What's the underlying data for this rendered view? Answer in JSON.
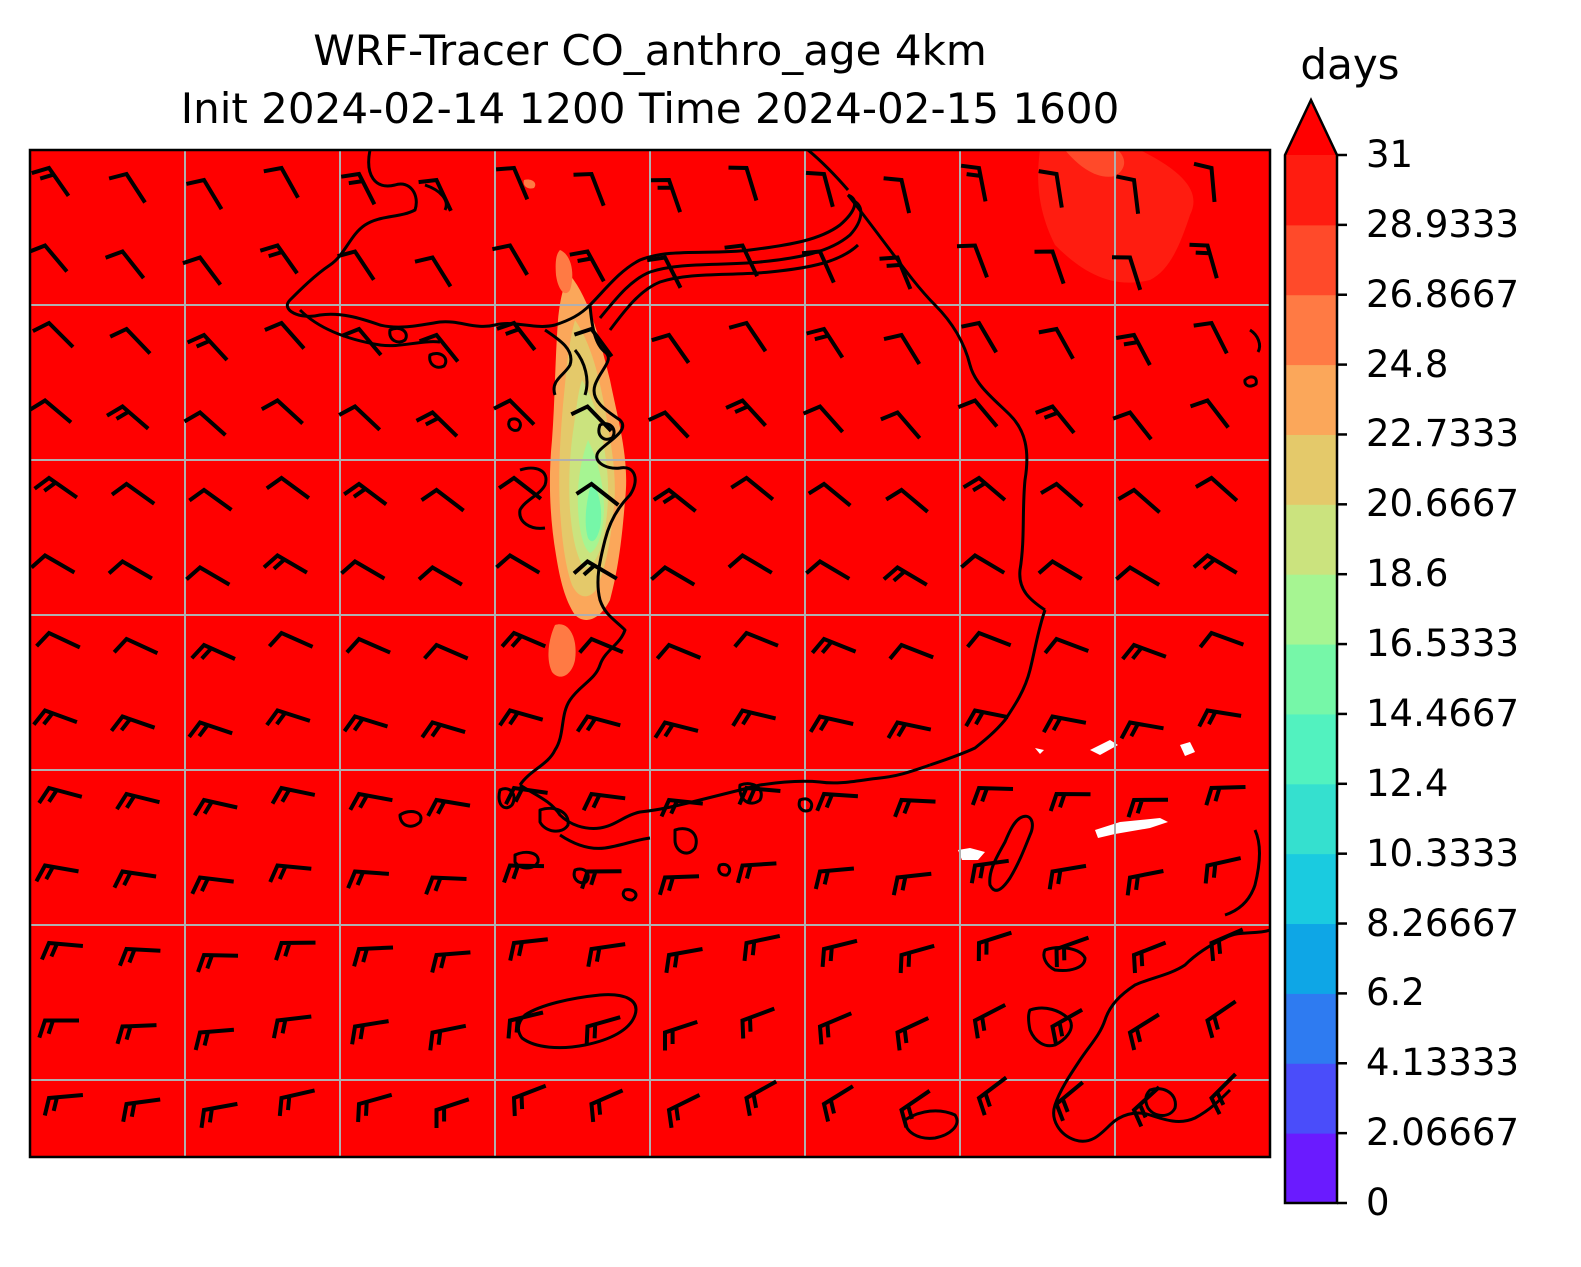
{
  "title": {
    "line1": "WRF-Tracer CO_anthro_age 4km",
    "line2": "Init 2024-02-14 1200 Time 2024-02-15 1600"
  },
  "colorbar": {
    "label": "days",
    "ticks": [
      "0",
      "2.06667",
      "4.13333",
      "6.2",
      "8.26667",
      "10.3333",
      "12.4",
      "14.4667",
      "16.5333",
      "18.6",
      "20.6667",
      "22.7333",
      "24.8",
      "26.8667",
      "28.9333",
      "31"
    ],
    "levels": [
      0,
      2.06667,
      4.13333,
      6.2,
      8.26667,
      10.3333,
      12.4,
      14.4667,
      16.5333,
      18.6,
      20.6667,
      22.7333,
      24.8,
      26.8667,
      28.9333,
      31
    ],
    "colors": [
      "#6a1bff",
      "#4a4dfa",
      "#2e7bf1",
      "#0ea6e6",
      "#1acbe0",
      "#35e0cf",
      "#52f2bf",
      "#76f7a8",
      "#a6f592",
      "#cbe37e",
      "#e4c96a",
      "#fba75a",
      "#ff7a44",
      "#ff4a2a",
      "#ff1c10"
    ],
    "extend": "max",
    "extend_color": "#ff0000"
  },
  "map": {
    "background_color": "#ff0000",
    "grid": true,
    "coastlines": true,
    "wind_barbs": true,
    "features": {
      "low_age_plume_colors": [
        "#fba75a",
        "#e4c96a",
        "#cbe37e",
        "#a6f592",
        "#76f7a8"
      ],
      "missing_color": "#ffffff"
    }
  }
}
